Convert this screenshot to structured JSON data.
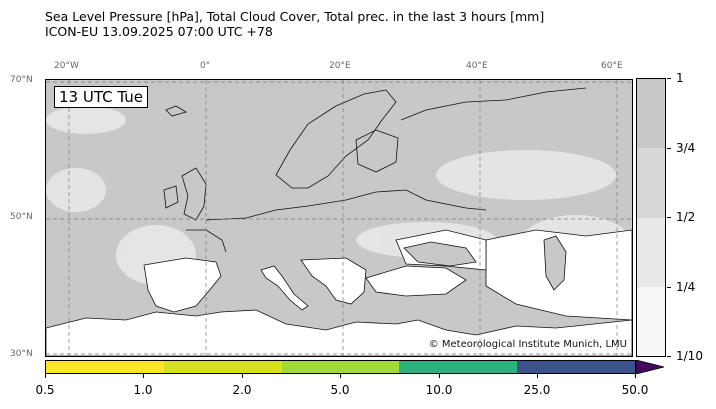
{
  "title": {
    "line1": "Sea Level Pressure [hPa], Total Cloud Cover, Total prec. in the last 3 hours [mm]",
    "line2": "ICON-EU 13.09.2025 07:00 UTC +78"
  },
  "map": {
    "time_label": "13 UTC Tue",
    "copyright": "© Meteorological Institute Munich, LMU",
    "lon_labels": [
      "20°W",
      "0°",
      "20°E",
      "40°E",
      "60°E"
    ],
    "lat_labels": [
      "70°N",
      "50°N",
      "30°N"
    ],
    "land_fill": "#ffffff",
    "sea_fill": "#c8c8c8"
  },
  "cloud_cover": {
    "labels": [
      "1",
      "3/4",
      "1/2",
      "1/4",
      "1/10"
    ],
    "colors": [
      "#c8c8c8",
      "#d8d8d8",
      "#e8e8e8",
      "#f7f7f7"
    ]
  },
  "precipitation": {
    "labels": [
      "0.5",
      "1.0",
      "2.0",
      "5.0",
      "10.0",
      "25.0",
      "50.0"
    ],
    "colors": [
      "#fde725",
      "#d5e21a",
      "#a0da39",
      "#2db27d",
      "#3b528b",
      "#460a5d"
    ]
  }
}
